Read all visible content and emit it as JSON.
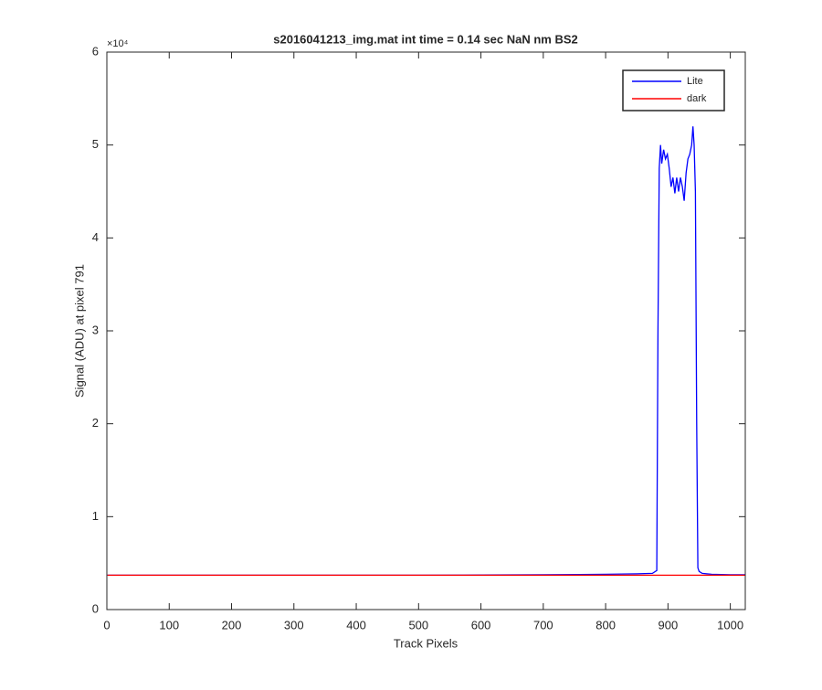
{
  "chart_data": {
    "type": "line",
    "title": "s2016041213_img.mat int time = 0.14 sec  NaN nm BS2",
    "x_label": "Track Pixels",
    "y_label": "Signal (ADU) at pixel 791",
    "y_exponent_label": "×10⁴",
    "xlim": [
      0,
      1024
    ],
    "xticks": [
      0,
      100,
      200,
      300,
      400,
      500,
      600,
      700,
      800,
      900,
      1000
    ],
    "ylim": [
      0,
      60000
    ],
    "yticks": [
      {
        "value": 0,
        "label": "0"
      },
      {
        "value": 10000,
        "label": "1"
      },
      {
        "value": 20000,
        "label": "2"
      },
      {
        "value": 30000,
        "label": "3"
      },
      {
        "value": 40000,
        "label": "4"
      },
      {
        "value": 50000,
        "label": "5"
      },
      {
        "value": 60000,
        "label": "6"
      }
    ],
    "grid": false,
    "legend_position": "upper-right",
    "series": [
      {
        "name": "Lite",
        "color": "#0000ff",
        "x": [
          1,
          100,
          200,
          300,
          400,
          500,
          600,
          700,
          800,
          850,
          875,
          882,
          884,
          886,
          888,
          890,
          893,
          896,
          899,
          902,
          905,
          908,
          911,
          914,
          917,
          920,
          923,
          926,
          929,
          932,
          935,
          938,
          940,
          942,
          944,
          946,
          948,
          950,
          955,
          970,
          1000,
          1024
        ],
        "values": [
          3700,
          3700,
          3700,
          3700,
          3700,
          3700,
          3720,
          3750,
          3800,
          3850,
          3900,
          4200,
          30000,
          47500,
          50000,
          48000,
          49500,
          48500,
          49000,
          47500,
          45500,
          46500,
          44800,
          46500,
          45000,
          46500,
          45500,
          44000,
          47000,
          48500,
          49000,
          50000,
          52000,
          50000,
          45000,
          20000,
          4500,
          4100,
          3900,
          3800,
          3750,
          3750
        ]
      },
      {
        "name": "dark",
        "color": "#ff0000",
        "x": [
          1,
          1024
        ],
        "values": [
          3700,
          3700
        ]
      }
    ]
  }
}
